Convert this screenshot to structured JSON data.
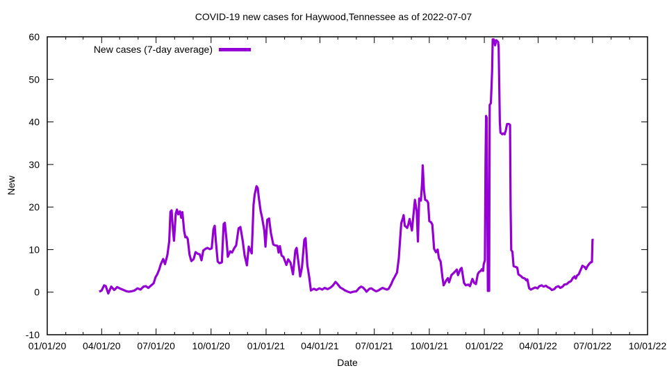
{
  "title": "COVID-19 new cases for Haywood,Tennessee as of 2022-07-07",
  "legend": {
    "label": "New cases (7-day average)"
  },
  "chart_data": {
    "type": "line",
    "title": "COVID-19 new cases for Haywood,Tennessee as of 2022-07-07",
    "xlabel": "Date",
    "ylabel": "New",
    "x_range": [
      "2020-01-01",
      "2022-10-01"
    ],
    "ylim": [
      -10,
      60
    ],
    "y_ticks": [
      -10,
      0,
      10,
      20,
      30,
      40,
      50,
      60
    ],
    "x_tick_labels": [
      "01/01/20",
      "04/01/20",
      "07/01/20",
      "10/01/20",
      "01/01/21",
      "04/01/21",
      "07/01/21",
      "10/01/21",
      "01/01/22",
      "04/01/22",
      "07/01/22",
      "10/01/22"
    ],
    "minor_x_ticks": "monthly",
    "grid": false,
    "legend_position": "top-left",
    "line_color": "#9400d3",
    "axis_color": "#000000",
    "series": [
      {
        "name": "New cases (7-day average)",
        "points": [
          [
            "2020-03-28",
            0.1
          ],
          [
            "2020-04-01",
            0.4
          ],
          [
            "2020-04-05",
            1.6
          ],
          [
            "2020-04-08",
            1.4
          ],
          [
            "2020-04-12",
            -0.3
          ],
          [
            "2020-04-17",
            1.3
          ],
          [
            "2020-04-22",
            0.5
          ],
          [
            "2020-04-27",
            1.2
          ],
          [
            "2020-05-01",
            0.9
          ],
          [
            "2020-05-06",
            0.6
          ],
          [
            "2020-05-11",
            0.3
          ],
          [
            "2020-05-16",
            0.1
          ],
          [
            "2020-05-21",
            0.2
          ],
          [
            "2020-05-26",
            0.4
          ],
          [
            "2020-05-31",
            0.9
          ],
          [
            "2020-06-05",
            0.6
          ],
          [
            "2020-06-10",
            1.3
          ],
          [
            "2020-06-14",
            1.4
          ],
          [
            "2020-06-18",
            1.0
          ],
          [
            "2020-06-23",
            1.6
          ],
          [
            "2020-06-27",
            2.1
          ],
          [
            "2020-06-30",
            3.5
          ],
          [
            "2020-07-03",
            4.2
          ],
          [
            "2020-07-06",
            5.2
          ],
          [
            "2020-07-09",
            6.6
          ],
          [
            "2020-07-13",
            7.8
          ],
          [
            "2020-07-16",
            6.6
          ],
          [
            "2020-07-20",
            8.8
          ],
          [
            "2020-07-23",
            12.0
          ],
          [
            "2020-07-25",
            18.9
          ],
          [
            "2020-07-27",
            19.2
          ],
          [
            "2020-07-29",
            15.1
          ],
          [
            "2020-07-31",
            12.1
          ],
          [
            "2020-08-03",
            18.5
          ],
          [
            "2020-08-05",
            19.4
          ],
          [
            "2020-08-07",
            18.3
          ],
          [
            "2020-08-10",
            19.0
          ],
          [
            "2020-08-12",
            17.5
          ],
          [
            "2020-08-14",
            18.8
          ],
          [
            "2020-08-17",
            14.3
          ],
          [
            "2020-08-19",
            12.9
          ],
          [
            "2020-08-21",
            13.0
          ],
          [
            "2020-08-23",
            12.5
          ],
          [
            "2020-08-26",
            8.8
          ],
          [
            "2020-08-29",
            7.3
          ],
          [
            "2020-09-02",
            7.8
          ],
          [
            "2020-09-05",
            9.4
          ],
          [
            "2020-09-09",
            9.0
          ],
          [
            "2020-09-12",
            8.9
          ],
          [
            "2020-09-15",
            7.5
          ],
          [
            "2020-09-18",
            9.8
          ],
          [
            "2020-09-22",
            10.2
          ],
          [
            "2020-09-25",
            10.4
          ],
          [
            "2020-09-29",
            10.1
          ],
          [
            "2020-10-02",
            10.3
          ],
          [
            "2020-10-05",
            14.8
          ],
          [
            "2020-10-07",
            15.6
          ],
          [
            "2020-10-09",
            12.0
          ],
          [
            "2020-10-12",
            7.2
          ],
          [
            "2020-10-15",
            6.8
          ],
          [
            "2020-10-19",
            7.0
          ],
          [
            "2020-10-22",
            16.0
          ],
          [
            "2020-10-24",
            16.3
          ],
          [
            "2020-10-27",
            12.0
          ],
          [
            "2020-10-29",
            8.3
          ],
          [
            "2020-11-02",
            9.6
          ],
          [
            "2020-11-05",
            9.3
          ],
          [
            "2020-11-09",
            10.4
          ],
          [
            "2020-11-12",
            11.0
          ],
          [
            "2020-11-16",
            15.0
          ],
          [
            "2020-11-19",
            15.3
          ],
          [
            "2020-11-23",
            12.0
          ],
          [
            "2020-11-26",
            8.7
          ],
          [
            "2020-11-30",
            6.3
          ],
          [
            "2020-12-03",
            10.7
          ],
          [
            "2020-12-08",
            9.1
          ],
          [
            "2020-12-11",
            20.5
          ],
          [
            "2020-12-13",
            23.0
          ],
          [
            "2020-12-16",
            24.9
          ],
          [
            "2020-12-18",
            24.5
          ],
          [
            "2020-12-20",
            22.1
          ],
          [
            "2020-12-23",
            19.0
          ],
          [
            "2020-12-25",
            17.8
          ],
          [
            "2020-12-29",
            14.5
          ],
          [
            "2020-12-31",
            10.7
          ],
          [
            "2021-01-03",
            17.0
          ],
          [
            "2021-01-06",
            17.3
          ],
          [
            "2021-01-09",
            14.0
          ],
          [
            "2021-01-13",
            11.2
          ],
          [
            "2021-01-16",
            11.0
          ],
          [
            "2021-01-20",
            10.9
          ],
          [
            "2021-01-22",
            9.3
          ],
          [
            "2021-01-24",
            10.8
          ],
          [
            "2021-01-27",
            8.6
          ],
          [
            "2021-01-30",
            8.3
          ],
          [
            "2021-02-04",
            6.4
          ],
          [
            "2021-02-07",
            7.7
          ],
          [
            "2021-02-11",
            6.9
          ],
          [
            "2021-02-15",
            4.2
          ],
          [
            "2021-02-19",
            9.8
          ],
          [
            "2021-02-21",
            10.4
          ],
          [
            "2021-02-25",
            6.0
          ],
          [
            "2021-02-27",
            3.7
          ],
          [
            "2021-03-02",
            5.8
          ],
          [
            "2021-03-06",
            12.3
          ],
          [
            "2021-03-08",
            12.7
          ],
          [
            "2021-03-11",
            6.4
          ],
          [
            "2021-03-14",
            3.7
          ],
          [
            "2021-03-17",
            0.4
          ],
          [
            "2021-03-22",
            0.8
          ],
          [
            "2021-03-26",
            0.5
          ],
          [
            "2021-03-31",
            0.9
          ],
          [
            "2021-04-05",
            0.6
          ],
          [
            "2021-04-09",
            1.0
          ],
          [
            "2021-04-14",
            0.7
          ],
          [
            "2021-04-19",
            1.1
          ],
          [
            "2021-04-23",
            1.6
          ],
          [
            "2021-04-27",
            2.4
          ],
          [
            "2021-04-30",
            2.0
          ],
          [
            "2021-05-05",
            1.1
          ],
          [
            "2021-05-10",
            0.7
          ],
          [
            "2021-05-13",
            0.4
          ],
          [
            "2021-05-18",
            0.1
          ],
          [
            "2021-05-22",
            -0.1
          ],
          [
            "2021-05-27",
            0.1
          ],
          [
            "2021-06-01",
            0.2
          ],
          [
            "2021-06-05",
            0.9
          ],
          [
            "2021-06-09",
            1.3
          ],
          [
            "2021-06-12",
            1.1
          ],
          [
            "2021-06-16",
            0.5
          ],
          [
            "2021-06-18",
            0.1
          ],
          [
            "2021-06-23",
            0.8
          ],
          [
            "2021-06-26",
            0.9
          ],
          [
            "2021-06-30",
            0.5
          ],
          [
            "2021-07-04",
            0.2
          ],
          [
            "2021-07-08",
            0.4
          ],
          [
            "2021-07-11",
            0.7
          ],
          [
            "2021-07-15",
            1.0
          ],
          [
            "2021-07-18",
            0.8
          ],
          [
            "2021-07-22",
            0.6
          ],
          [
            "2021-07-25",
            0.8
          ],
          [
            "2021-07-29",
            1.8
          ],
          [
            "2021-08-01",
            2.8
          ],
          [
            "2021-08-05",
            3.8
          ],
          [
            "2021-08-08",
            4.6
          ],
          [
            "2021-08-11",
            8.0
          ],
          [
            "2021-08-13",
            12.0
          ],
          [
            "2021-08-15",
            16.2
          ],
          [
            "2021-08-18",
            17.5
          ],
          [
            "2021-08-19",
            18.1
          ],
          [
            "2021-08-21",
            15.6
          ],
          [
            "2021-08-25",
            15.1
          ],
          [
            "2021-08-27",
            16.0
          ],
          [
            "2021-08-29",
            17.2
          ],
          [
            "2021-09-02",
            14.5
          ],
          [
            "2021-09-05",
            18.9
          ],
          [
            "2021-09-07",
            21.7
          ],
          [
            "2021-09-10",
            19.0
          ],
          [
            "2021-09-12",
            11.9
          ],
          [
            "2021-09-14",
            22.0
          ],
          [
            "2021-09-17",
            21.5
          ],
          [
            "2021-09-19",
            26.0
          ],
          [
            "2021-09-20",
            29.8
          ],
          [
            "2021-09-22",
            24.0
          ],
          [
            "2021-09-24",
            21.7
          ],
          [
            "2021-09-27",
            21.5
          ],
          [
            "2021-09-29",
            21.0
          ],
          [
            "2021-10-01",
            16.7
          ],
          [
            "2021-10-04",
            16.4
          ],
          [
            "2021-10-06",
            15.9
          ],
          [
            "2021-10-09",
            10.2
          ],
          [
            "2021-10-12",
            9.4
          ],
          [
            "2021-10-15",
            10.0
          ],
          [
            "2021-10-17",
            8.0
          ],
          [
            "2021-10-20",
            7.2
          ],
          [
            "2021-10-23",
            3.5
          ],
          [
            "2021-10-25",
            1.6
          ],
          [
            "2021-10-29",
            2.7
          ],
          [
            "2021-11-01",
            3.3
          ],
          [
            "2021-11-03",
            2.3
          ],
          [
            "2021-11-07",
            4.0
          ],
          [
            "2021-11-10",
            4.4
          ],
          [
            "2021-11-14",
            5.0
          ],
          [
            "2021-11-16",
            5.3
          ],
          [
            "2021-11-18",
            4.0
          ],
          [
            "2021-11-22",
            5.4
          ],
          [
            "2021-11-24",
            5.7
          ],
          [
            "2021-11-28",
            2.2
          ],
          [
            "2021-12-01",
            1.6
          ],
          [
            "2021-12-05",
            1.8
          ],
          [
            "2021-12-08",
            1.4
          ],
          [
            "2021-12-12",
            3.1
          ],
          [
            "2021-12-15",
            2.2
          ],
          [
            "2021-12-18",
            1.9
          ],
          [
            "2021-12-21",
            4.2
          ],
          [
            "2021-12-23",
            4.7
          ],
          [
            "2021-12-26",
            5.0
          ],
          [
            "2021-12-28",
            5.4
          ],
          [
            "2021-12-30",
            5.0
          ],
          [
            "2021-12-31",
            6.6
          ],
          [
            "2022-01-02",
            7.5
          ],
          [
            "2022-01-03",
            30.0
          ],
          [
            "2022-01-04",
            41.4
          ],
          [
            "2022-01-05",
            41.0
          ],
          [
            "2022-01-06",
            20.0
          ],
          [
            "2022-01-07",
            0.3
          ],
          [
            "2022-01-09",
            0.3
          ],
          [
            "2022-01-10",
            44.0
          ],
          [
            "2022-01-12",
            44.4
          ],
          [
            "2022-01-14",
            52.0
          ],
          [
            "2022-01-15",
            59.4
          ],
          [
            "2022-01-17",
            59.4
          ],
          [
            "2022-01-19",
            58.0
          ],
          [
            "2022-01-21",
            59.2
          ],
          [
            "2022-01-24",
            58.8
          ],
          [
            "2022-01-25",
            57.5
          ],
          [
            "2022-01-27",
            40.0
          ],
          [
            "2022-01-28",
            37.5
          ],
          [
            "2022-01-31",
            37.1
          ],
          [
            "2022-02-02",
            37.3
          ],
          [
            "2022-02-04",
            37.1
          ],
          [
            "2022-02-06",
            38.0
          ],
          [
            "2022-02-08",
            39.5
          ],
          [
            "2022-02-11",
            39.5
          ],
          [
            "2022-02-13",
            39.3
          ],
          [
            "2022-02-14",
            20.0
          ],
          [
            "2022-02-15",
            9.9
          ],
          [
            "2022-02-17",
            9.5
          ],
          [
            "2022-02-19",
            6.1
          ],
          [
            "2022-02-23",
            5.9
          ],
          [
            "2022-02-25",
            5.8
          ],
          [
            "2022-02-27",
            4.2
          ],
          [
            "2022-03-03",
            3.8
          ],
          [
            "2022-03-06",
            3.4
          ],
          [
            "2022-03-10",
            3.2
          ],
          [
            "2022-03-12",
            2.8
          ],
          [
            "2022-03-14",
            3.0
          ],
          [
            "2022-03-17",
            0.9
          ],
          [
            "2022-03-20",
            0.6
          ],
          [
            "2022-03-24",
            0.9
          ],
          [
            "2022-03-27",
            1.1
          ],
          [
            "2022-03-31",
            0.9
          ],
          [
            "2022-04-03",
            1.4
          ],
          [
            "2022-04-07",
            1.6
          ],
          [
            "2022-04-10",
            1.3
          ],
          [
            "2022-04-14",
            1.5
          ],
          [
            "2022-04-17",
            1.2
          ],
          [
            "2022-04-21",
            0.9
          ],
          [
            "2022-04-24",
            0.5
          ],
          [
            "2022-04-28",
            0.7
          ],
          [
            "2022-05-01",
            1.2
          ],
          [
            "2022-05-05",
            1.4
          ],
          [
            "2022-05-08",
            1.0
          ],
          [
            "2022-05-12",
            1.3
          ],
          [
            "2022-05-15",
            1.8
          ],
          [
            "2022-05-19",
            1.9
          ],
          [
            "2022-05-22",
            2.3
          ],
          [
            "2022-05-26",
            2.6
          ],
          [
            "2022-05-29",
            3.3
          ],
          [
            "2022-06-01",
            3.7
          ],
          [
            "2022-06-03",
            3.2
          ],
          [
            "2022-06-05",
            3.9
          ],
          [
            "2022-06-08",
            4.2
          ],
          [
            "2022-06-10",
            4.9
          ],
          [
            "2022-06-12",
            5.5
          ],
          [
            "2022-06-14",
            6.2
          ],
          [
            "2022-06-18",
            5.9
          ],
          [
            "2022-06-20",
            5.4
          ],
          [
            "2022-06-22",
            6.0
          ],
          [
            "2022-06-25",
            6.6
          ],
          [
            "2022-06-28",
            7.0
          ],
          [
            "2022-06-30",
            7.1
          ],
          [
            "2022-07-01",
            12.3
          ],
          [
            "2022-07-03",
            12.3
          ]
        ]
      }
    ]
  }
}
